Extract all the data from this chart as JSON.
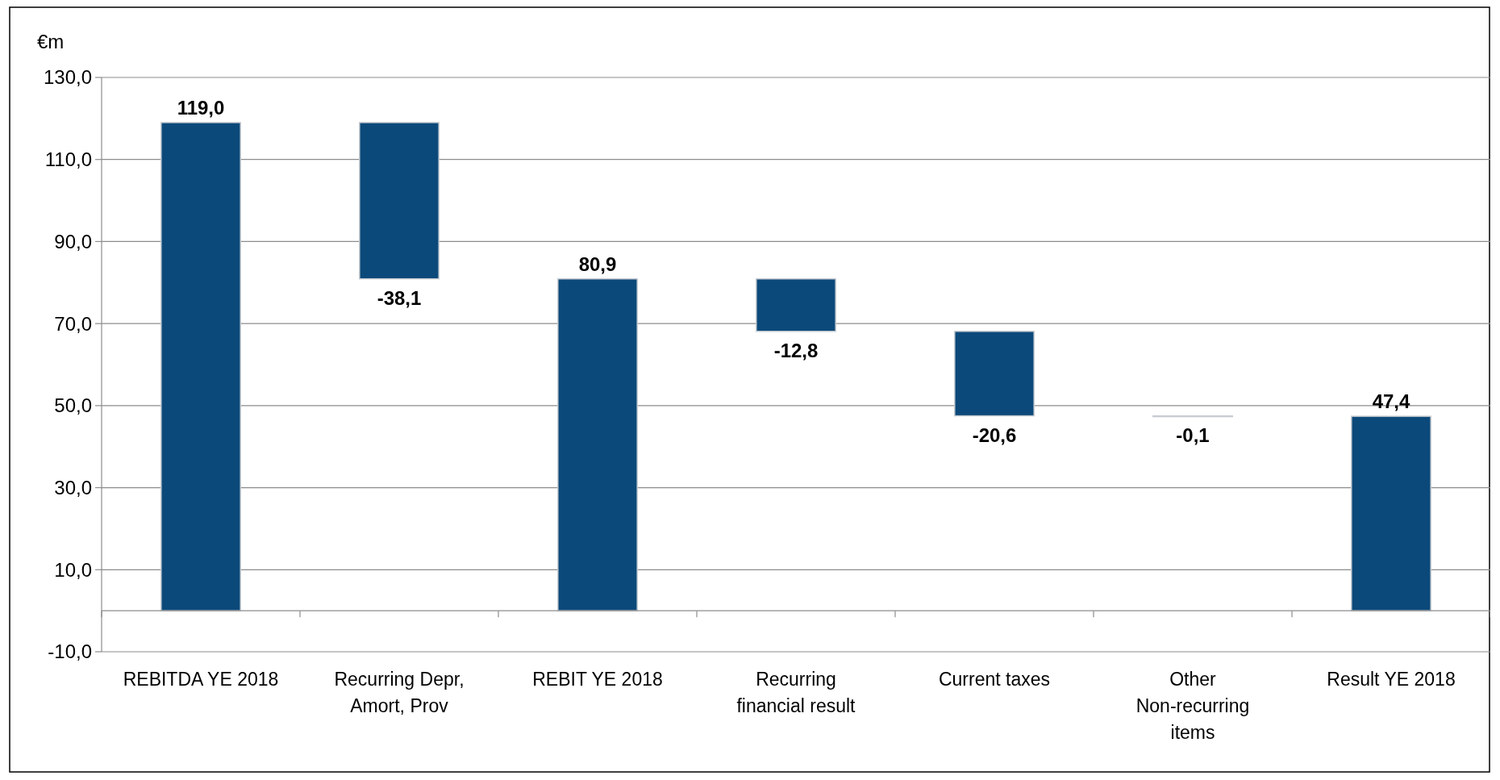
{
  "chart_data": {
    "type": "bar",
    "ylabel": "€m",
    "categories": [
      "REBITDA YE 2018",
      "Recurring Depr, Amort, Prov",
      "REBIT YE 2018",
      "Recurring financial result",
      "Current taxes",
      "Other Non-recurring items",
      "Result YE 2018"
    ],
    "values": [
      119.0,
      -38.1,
      80.9,
      -12.8,
      -20.6,
      -0.1,
      47.4
    ],
    "base": [
      0,
      119.0,
      0,
      80.9,
      68.1,
      47.5,
      0
    ],
    "value_labels": [
      "119,0",
      "-38,1",
      "80,9",
      "-12,8",
      "-20,6",
      "-0,1",
      "47,4"
    ],
    "color": "#0b497a",
    "ylim": [
      -10,
      130
    ],
    "yticks": [
      {
        "value": -10,
        "label": "-10,0"
      },
      {
        "value": 10,
        "label": "10,0"
      },
      {
        "value": 30,
        "label": "30,0"
      },
      {
        "value": 50,
        "label": "50,0"
      },
      {
        "value": 70,
        "label": "70,0"
      },
      {
        "value": 90,
        "label": "90,0"
      },
      {
        "value": 110,
        "label": "110,0"
      },
      {
        "value": 130,
        "label": "130,0"
      }
    ],
    "grid": "y"
  }
}
